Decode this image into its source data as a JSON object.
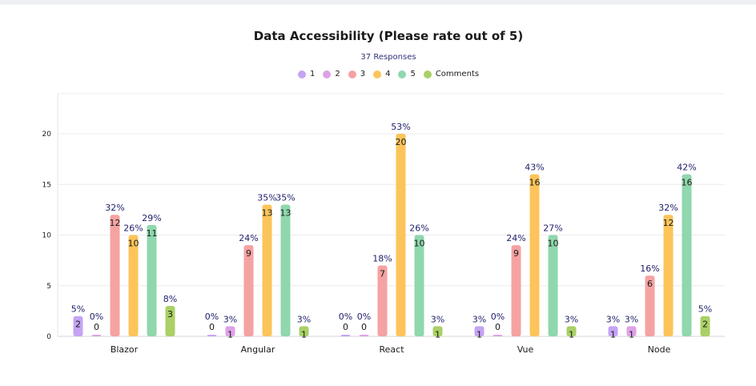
{
  "chart_data": {
    "type": "bar",
    "title": "Data Accessibility (Please rate out of 5)",
    "subtitle": "37 Responses",
    "categories": [
      "Blazor",
      "Angular",
      "React",
      "Vue",
      "Node"
    ],
    "series": [
      {
        "name": "1",
        "color": "#c4a4f4",
        "values": [
          2,
          0,
          0,
          1,
          1
        ],
        "percents": [
          "5%",
          "0%",
          "0%",
          "3%",
          "3%"
        ]
      },
      {
        "name": "2",
        "color": "#dda2e6",
        "values": [
          0,
          1,
          0,
          0,
          1
        ],
        "percents": [
          "0%",
          "3%",
          "0%",
          "0%",
          "3%"
        ]
      },
      {
        "name": "3",
        "color": "#f5a2a2",
        "values": [
          12,
          9,
          7,
          9,
          6
        ],
        "percents": [
          "32%",
          "24%",
          "18%",
          "24%",
          "16%"
        ]
      },
      {
        "name": "4",
        "color": "#fcc45a",
        "values": [
          10,
          13,
          20,
          16,
          12
        ],
        "percents": [
          "26%",
          "35%",
          "53%",
          "43%",
          "32%"
        ]
      },
      {
        "name": "5",
        "color": "#8fd7ad",
        "values": [
          11,
          13,
          10,
          10,
          16
        ],
        "percents": [
          "29%",
          "35%",
          "26%",
          "27%",
          "42%"
        ]
      },
      {
        "name": "Comments",
        "color": "#aad066",
        "values": [
          3,
          1,
          1,
          1,
          2
        ],
        "percents": [
          "8%",
          "3%",
          "3%",
          "3%",
          "5%"
        ]
      }
    ],
    "yticks": [
      0,
      5,
      10,
      15,
      20
    ],
    "ylim": [
      0,
      23.5
    ],
    "grid": true,
    "legend": "top-center"
  }
}
